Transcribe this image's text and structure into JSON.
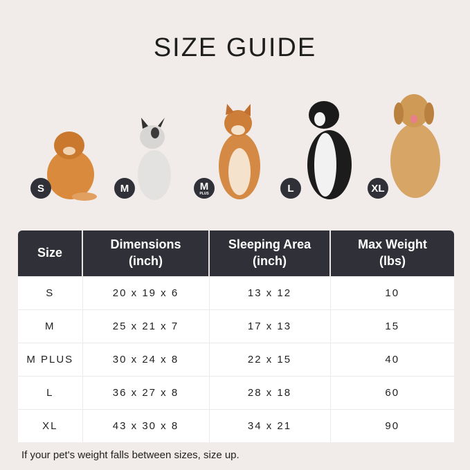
{
  "title": "SIZE GUIDE",
  "sizes": [
    {
      "label": "S",
      "sub": ""
    },
    {
      "label": "M",
      "sub": ""
    },
    {
      "label": "M",
      "sub": "PLUS"
    },
    {
      "label": "L",
      "sub": ""
    },
    {
      "label": "XL",
      "sub": ""
    }
  ],
  "table": {
    "headers": [
      [
        "Size",
        ""
      ],
      [
        "Dimensions",
        "(inch)"
      ],
      [
        "Sleeping Area",
        "(inch)"
      ],
      [
        "Max Weight",
        "(lbs)"
      ]
    ],
    "rows": [
      [
        "S",
        "20 x 19 x 6",
        "13 x 12",
        "10"
      ],
      [
        "M",
        "25 x 21 x 7",
        "17 x 13",
        "15"
      ],
      [
        "M PLUS",
        "30 x 24 x 8",
        "22 x 15",
        "40"
      ],
      [
        "L",
        "36 x 27 x 8",
        "28 x 18",
        "60"
      ],
      [
        "XL",
        "43 x 30 x 8",
        "34 x 21",
        "90"
      ]
    ]
  },
  "note": "If your pet's weight falls between sizes, size up.",
  "colors": {
    "header_bg": "#2f3038",
    "page_bg": "#f1ece9"
  }
}
